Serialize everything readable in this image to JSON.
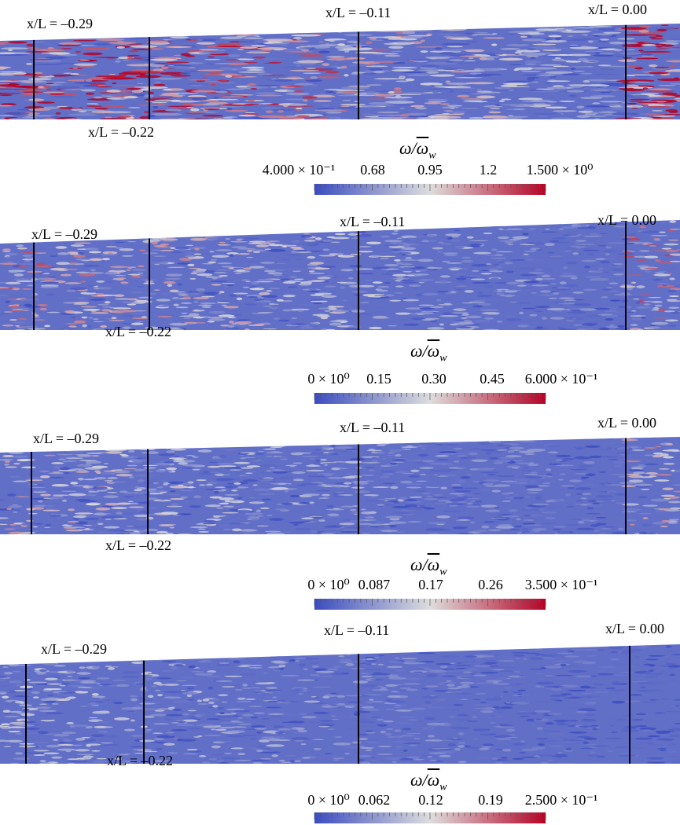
{
  "station_labels": {
    "s029": "x/L = –0.29",
    "s022": "x/L = –0.22",
    "s011": "x/L = –0.11",
    "s000": "x/L = 0.00"
  },
  "colorbar_title": "ω/ϖw",
  "colormap": {
    "low": "#3b4cc0",
    "mid": "#dddddd",
    "high": "#b40426"
  },
  "panels": [
    {
      "density": 0.55,
      "ticks": [
        "4.000 × 10⁻¹",
        "0.68",
        "0.95",
        "1.2",
        "1.500 × 10⁰"
      ],
      "range": [
        0.4,
        1.5
      ]
    },
    {
      "density": 0.35,
      "ticks": [
        "0 × 10⁰",
        "0.15",
        "0.30",
        "0.45",
        "6.000 × 10⁻¹"
      ],
      "range": [
        0,
        0.6
      ]
    },
    {
      "density": 0.28,
      "ticks": [
        "0 × 10⁰",
        "0.087",
        "0.17",
        "0.26",
        "3.500 × 10⁻¹"
      ],
      "range": [
        0,
        0.35
      ]
    },
    {
      "density": 0.22,
      "ticks": [
        "0 × 10⁰",
        "0.062",
        "0.12",
        "0.19",
        "2.500 × 10⁻¹"
      ],
      "range": [
        0,
        0.25
      ]
    }
  ]
}
